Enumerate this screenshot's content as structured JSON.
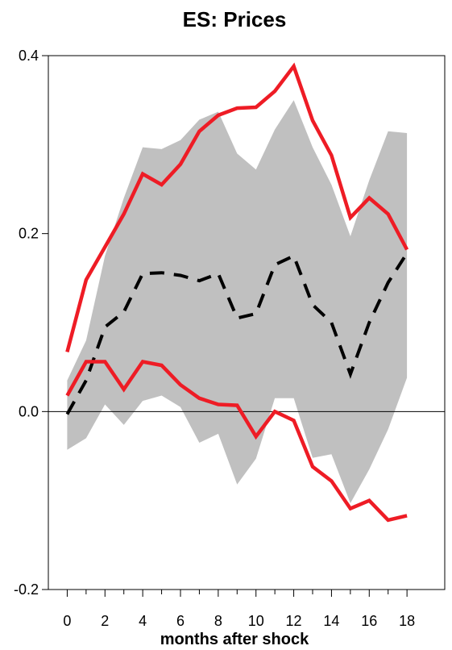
{
  "chart_data": {
    "type": "line",
    "title": "ES: Prices",
    "xlabel": "months after shock",
    "ylabel": "",
    "xlim": [
      -1,
      20
    ],
    "ylim": [
      -0.2,
      0.4
    ],
    "xticks": [
      0,
      2,
      4,
      6,
      8,
      10,
      12,
      14,
      16,
      18
    ],
    "xtick_labels": [
      "0",
      "2",
      "4",
      "6",
      "8",
      "10",
      "12",
      "14",
      "16",
      "18"
    ],
    "yticks": [
      -0.2,
      0.0,
      0.2,
      0.4
    ],
    "ytick_labels": [
      "-0.2",
      "0.0",
      "0.2",
      "0.4"
    ],
    "zero_line": true,
    "grid": false,
    "x": [
      0,
      1,
      2,
      3,
      4,
      5,
      6,
      7,
      8,
      9,
      10,
      11,
      12,
      13,
      14,
      15,
      16,
      17,
      18
    ],
    "band": {
      "lower": [
        -0.043,
        -0.03,
        0.008,
        -0.015,
        0.012,
        0.018,
        0.005,
        -0.035,
        -0.025,
        -0.082,
        -0.053,
        0.015,
        0.015,
        -0.052,
        -0.048,
        -0.103,
        -0.065,
        -0.02,
        0.038
      ],
      "upper": [
        0.035,
        0.08,
        0.175,
        0.24,
        0.297,
        0.295,
        0.305,
        0.328,
        0.337,
        0.29,
        0.272,
        0.317,
        0.35,
        0.297,
        0.255,
        0.197,
        0.26,
        0.315,
        0.313
      ],
      "color": "#c0c0c0"
    },
    "series": [
      {
        "values": [
          -0.003,
          0.035,
          0.095,
          0.112,
          0.155,
          0.156,
          0.153,
          0.147,
          0.155,
          0.105,
          0.11,
          0.165,
          0.175,
          0.12,
          0.1,
          0.042,
          0.1,
          0.145,
          0.178
        ],
        "color": "#000000",
        "style": "dashed"
      },
      {
        "values": [
          0.067,
          0.148,
          0.185,
          0.222,
          0.267,
          0.255,
          0.278,
          0.315,
          0.333,
          0.341,
          0.342,
          0.36,
          0.388,
          0.327,
          0.288,
          0.218,
          0.24,
          0.222,
          0.182
        ],
        "color": "#ee1c25",
        "style": "solid"
      },
      {
        "values": [
          0.018,
          0.056,
          0.056,
          0.025,
          0.056,
          0.052,
          0.03,
          0.015,
          0.008,
          0.007,
          -0.028,
          0.0,
          -0.01,
          -0.062,
          -0.078,
          -0.109,
          -0.1,
          -0.122,
          -0.117
        ],
        "color": "#ee1c25",
        "style": "solid"
      }
    ]
  }
}
